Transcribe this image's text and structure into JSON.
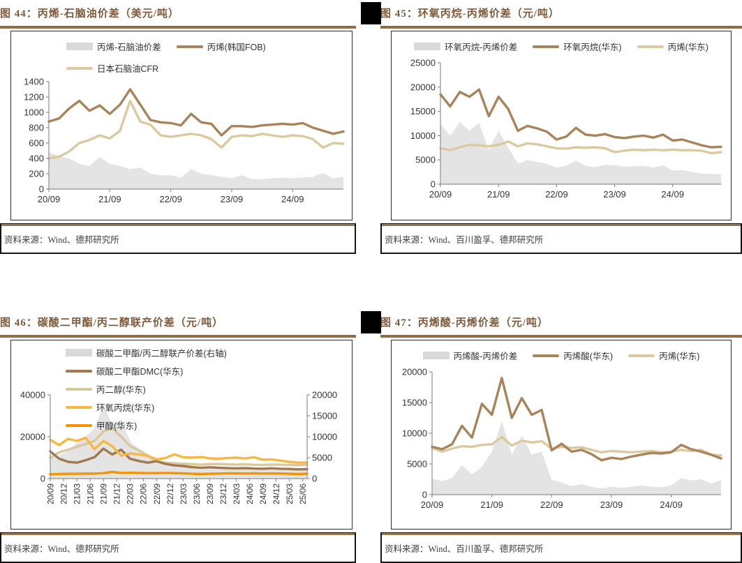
{
  "colors": {
    "title": "#7F5B3B",
    "rule": "#8E6C4C",
    "gray_area": "#E4E4E4",
    "gray_swatch": "#D9D9D9",
    "brown_line": "#A9835A",
    "tan_line": "#DBC9A0",
    "amber_line": "#F7B843",
    "orange_line": "#F59300"
  },
  "figures": [
    {
      "title": "图 44：丙烯-石脑油价差（美元/吨）",
      "source": "资料来源：Wind、德邦研究所",
      "legend": [
        {
          "label": "丙烯-石脑油价差",
          "color": "#D9D9D9",
          "type": "area"
        },
        {
          "label": "丙烯(韩国FOB)",
          "color": "#A9835A",
          "type": "line"
        },
        {
          "label": "日本石脑油CFR",
          "color": "#DBC9A0",
          "type": "line"
        }
      ],
      "chart_data": {
        "type": "area+line combo",
        "title": "丙烯-石脑油价差（美元/吨）",
        "ylim": [
          0,
          1400
        ],
        "yticks": [
          0,
          200,
          400,
          600,
          800,
          1000,
          1200,
          1400
        ],
        "months_span": 58,
        "xticks": [
          {
            "m": 0,
            "label": "20/09"
          },
          {
            "m": 12,
            "label": "21/09"
          },
          {
            "m": 24,
            "label": "22/09"
          },
          {
            "m": 36,
            "label": "23/09"
          },
          {
            "m": 48,
            "label": "24/09"
          }
        ],
        "series": [
          {
            "name": "丙烯-石脑油价差",
            "type": "area",
            "axis": "left",
            "color": "#E4E4E4",
            "values": [
              480,
              430,
              400,
              330,
              300,
              420,
              330,
              300,
              260,
              280,
              200,
              180,
              180,
              150,
              260,
              200,
              180,
              160,
              140,
              180,
              130,
              130,
              140,
              150,
              140,
              150,
              160,
              210,
              140,
              160
            ]
          },
          {
            "name": "日本石脑油CFR",
            "type": "line",
            "axis": "left",
            "color": "#DBC9A0",
            "values": [
              400,
              420,
              490,
              600,
              640,
              700,
              660,
              760,
              1150,
              880,
              840,
              700,
              680,
              700,
              720,
              700,
              650,
              540,
              680,
              700,
              690,
              720,
              700,
              680,
              700,
              690,
              650,
              540,
              600,
              590
            ]
          },
          {
            "name": "丙烯(韩国FOB)",
            "type": "line",
            "axis": "left",
            "color": "#A9835A",
            "values": [
              880,
              920,
              1050,
              1150,
              1020,
              1090,
              980,
              1100,
              1300,
              1100,
              900,
              870,
              860,
              830,
              980,
              870,
              850,
              700,
              820,
              820,
              810,
              830,
              840,
              850,
              840,
              860,
              800,
              760,
              720,
              750
            ]
          }
        ]
      }
    },
    {
      "title": "图 45：环氧丙烷-丙烯价差（元/吨）",
      "source": "资料来源：Wind、百川盈孚、德邦研究所",
      "legend": [
        {
          "label": "环氧丙烷-丙烯价差",
          "color": "#D9D9D9",
          "type": "area"
        },
        {
          "label": "环氧丙烷(华东)",
          "color": "#A9835A",
          "type": "line"
        },
        {
          "label": "丙烯(华东)",
          "color": "#DBC9A0",
          "type": "line"
        }
      ],
      "chart_data": {
        "type": "area+line combo",
        "title": "环氧丙烷-丙烯价差（元/吨）",
        "ylim": [
          0,
          25000
        ],
        "yticks": [
          0,
          5000,
          10000,
          15000,
          20000,
          25000
        ],
        "months_span": 58,
        "xticks": [
          {
            "m": 0,
            "label": "20/09"
          },
          {
            "m": 12,
            "label": "21/09"
          },
          {
            "m": 24,
            "label": "22/09"
          },
          {
            "m": 36,
            "label": "23/09"
          },
          {
            "m": 48,
            "label": "24/09"
          }
        ],
        "series": [
          {
            "name": "环氧丙烷-丙烯价差",
            "type": "area",
            "axis": "left",
            "color": "#E4E4E4",
            "values": [
              12500,
              10000,
              12800,
              11000,
              12600,
              7000,
              11000,
              7500,
              4200,
              5000,
              4600,
              4200,
              3400,
              3800,
              4800,
              3800,
              3500,
              4000,
              3900,
              3600,
              3700,
              3800,
              3400,
              3900,
              2800,
              2900,
              2500,
              2200,
              2100,
              2000
            ]
          },
          {
            "name": "丙烯(华东)",
            "type": "line",
            "axis": "left",
            "color": "#DBC9A0",
            "values": [
              7400,
              7000,
              7600,
              8100,
              8000,
              7800,
              8100,
              8800,
              7800,
              8400,
              8200,
              7800,
              7400,
              7300,
              7600,
              7500,
              7600,
              7400,
              6600,
              6900,
              7100,
              7000,
              7100,
              7000,
              7100,
              7000,
              7000,
              6900,
              6400,
              6600
            ]
          },
          {
            "name": "环氧丙烷(华东)",
            "type": "line",
            "axis": "left",
            "color": "#A9835A",
            "values": [
              18500,
              16000,
              19000,
              18000,
              19500,
              14000,
              18000,
              15500,
              11000,
              12000,
              11500,
              10800,
              9200,
              9800,
              11600,
              10200,
              10000,
              10300,
              9700,
              9500,
              9800,
              10000,
              9600,
              10200,
              9000,
              9200,
              8600,
              8000,
              7600,
              7700
            ]
          }
        ]
      }
    },
    {
      "title": "图 46：碳酸二甲酯/丙二醇联产价差（元/吨）",
      "source": "资料来源：Wind、德邦研究所",
      "legend": [
        {
          "label": "碳酸二甲酯/丙二醇联产价差(右轴)",
          "color": "#D9D9D9",
          "type": "area"
        },
        {
          "label": "碳酸二甲酯DMC(华东)",
          "color": "#A1794F",
          "type": "line"
        },
        {
          "label": "丙二醇(华东)",
          "color": "#D9C79E",
          "type": "line"
        },
        {
          "label": "环氧丙烷(华东)",
          "color": "#F7B843",
          "type": "line"
        },
        {
          "label": "甲醇(华东)",
          "color": "#F59300",
          "type": "line"
        }
      ],
      "chart_data": {
        "type": "area+line combo, dual axis",
        "title": "碳酸二甲酯/丙二醇联产价差（元/吨）",
        "ylim": [
          0,
          40000
        ],
        "yticks": [
          0,
          20000,
          40000
        ],
        "right_axis": {
          "ylim": [
            0,
            20000
          ],
          "yticks": [
            0,
            5000,
            10000,
            15000,
            20000
          ]
        },
        "months_span": 58,
        "xticks": [
          {
            "m": 0,
            "label": "20/09"
          },
          {
            "m": 3,
            "label": "20/12"
          },
          {
            "m": 6,
            "label": "21/03"
          },
          {
            "m": 9,
            "label": "21/06"
          },
          {
            "m": 12,
            "label": "21/09"
          },
          {
            "m": 15,
            "label": "21/12"
          },
          {
            "m": 18,
            "label": "22/03"
          },
          {
            "m": 21,
            "label": "22/06"
          },
          {
            "m": 24,
            "label": "22/09"
          },
          {
            "m": 27,
            "label": "22/12"
          },
          {
            "m": 30,
            "label": "23/03"
          },
          {
            "m": 33,
            "label": "23/06"
          },
          {
            "m": 36,
            "label": "23/09"
          },
          {
            "m": 39,
            "label": "23/12"
          },
          {
            "m": 42,
            "label": "24/03"
          },
          {
            "m": 45,
            "label": "24/06"
          },
          {
            "m": 48,
            "label": "24/09"
          },
          {
            "m": 51,
            "label": "24/12"
          },
          {
            "m": 54,
            "label": "25/03"
          },
          {
            "m": 57,
            "label": "25/06"
          }
        ],
        "rotate_xlabels": true,
        "series": [
          {
            "name": "碳酸二甲酯/丙二醇联产价差(右轴)",
            "type": "area",
            "axis": "right",
            "color": "#E4E4E4",
            "values": [
              5000,
              5500,
              6500,
              8500,
              10000,
              12000,
              17500,
              13000,
              14000,
              9000,
              7000,
              5500,
              4500,
              3800,
              3200,
              3000,
              2800,
              2600,
              2800,
              2600,
              2500,
              2400,
              2500,
              2300,
              2200,
              2400,
              2300,
              2200,
              2100,
              2200
            ]
          },
          {
            "name": "丙二醇(华东)",
            "type": "line",
            "axis": "left",
            "color": "#D9C79E",
            "values": [
              10000,
              12500,
              13800,
              15200,
              16500,
              18000,
              22500,
              24000,
              20000,
              15500,
              13500,
              11000,
              8300,
              7600,
              7300,
              7100,
              6900,
              6700,
              6900,
              7000,
              6800,
              6700,
              6800,
              6600,
              6500,
              6700,
              6600,
              6500,
              6400,
              6600
            ]
          },
          {
            "name": "碳酸二甲酯DMC(华东)",
            "type": "line",
            "axis": "left",
            "color": "#A1794F",
            "values": [
              13000,
              9500,
              8000,
              7600,
              8800,
              10200,
              14300,
              11500,
              13800,
              9500,
              8400,
              7600,
              8300,
              7000,
              6300,
              6000,
              5500,
              5200,
              5400,
              5200,
              5000,
              4900,
              5000,
              4800,
              4700,
              4900,
              4700,
              4600,
              4400,
              4500
            ]
          },
          {
            "name": "环氧丙烷(华东)",
            "type": "line",
            "axis": "left",
            "color": "#F7B843",
            "values": [
              18500,
              16000,
              19000,
              18000,
              19500,
              14000,
              18000,
              15500,
              11000,
              12000,
              11500,
              10800,
              9200,
              9800,
              11600,
              10200,
              10000,
              10300,
              9700,
              9500,
              9800,
              10000,
              9600,
              10200,
              9000,
              9200,
              8600,
              8000,
              7600,
              7700
            ]
          },
          {
            "name": "甲醇(华东)",
            "type": "line",
            "axis": "left",
            "color": "#F59300",
            "values": [
              2100,
              2200,
              2300,
              2300,
              2400,
              2400,
              2600,
              3200,
              2700,
              2800,
              2700,
              2600,
              2600,
              2700,
              2600,
              2500,
              2300,
              2200,
              2300,
              2400,
              2500,
              2500,
              2400,
              2500,
              2400,
              2500,
              2400,
              2300,
              2200,
              2300
            ]
          }
        ]
      }
    },
    {
      "title": "图 47：丙烯酸-丙烯价差（元/吨）",
      "source": "资料来源：Wind、百川盈孚、德邦研究所",
      "legend": [
        {
          "label": "丙烯酸-丙烯价差",
          "color": "#D9D9D9",
          "type": "area"
        },
        {
          "label": "丙烯酸(华东)",
          "color": "#A9835A",
          "type": "line"
        },
        {
          "label": "丙烯(华东)",
          "color": "#DBC9A0",
          "type": "line"
        }
      ],
      "chart_data": {
        "type": "area+line combo",
        "title": "丙烯酸-丙烯价差（元/吨）",
        "ylim": [
          0,
          20000
        ],
        "yticks": [
          0,
          5000,
          10000,
          15000,
          20000
        ],
        "months_span": 58,
        "xticks": [
          {
            "m": 0,
            "label": "20/09"
          },
          {
            "m": 12,
            "label": "21/09"
          },
          {
            "m": 24,
            "label": "22/09"
          },
          {
            "m": 36,
            "label": "23/09"
          },
          {
            "m": 48,
            "label": "24/09"
          }
        ],
        "series": [
          {
            "name": "丙烯酸-丙烯价差",
            "type": "area",
            "axis": "left",
            "color": "#E4E4E4",
            "values": [
              2600,
              2200,
              2700,
              4800,
              3300,
              4500,
              7000,
              12000,
              6500,
              9600,
              6500,
              7000,
              2400,
              2000,
              1400,
              1700,
              1300,
              1000,
              1300,
              1100,
              1300,
              1500,
              1300,
              1200,
              1500,
              2700,
              2300,
              2500,
              1800,
              2400
            ]
          },
          {
            "name": "丙烯(华东)",
            "type": "line",
            "axis": "left",
            "color": "#DBC9A0",
            "values": [
              7600,
              7000,
              7500,
              7900,
              7800,
              8100,
              8200,
              9400,
              8000,
              8800,
              8500,
              8700,
              7500,
              7800,
              7600,
              7700,
              7300,
              6900,
              7100,
              7000,
              6900,
              7000,
              7100,
              6900,
              7000,
              7300,
              7100,
              7300,
              6500,
              6400
            ]
          },
          {
            "name": "丙烯酸(华东)",
            "type": "line",
            "axis": "left",
            "color": "#A9835A",
            "values": [
              7800,
              7400,
              8200,
              11200,
              9300,
              14800,
              13000,
              19000,
              12500,
              15700,
              13000,
              13800,
              7200,
              8300,
              7000,
              7300,
              6600,
              5600,
              6000,
              5800,
              6200,
              6500,
              6800,
              6700,
              6900,
              8100,
              7400,
              7000,
              6500,
              5900
            ]
          }
        ]
      }
    }
  ]
}
